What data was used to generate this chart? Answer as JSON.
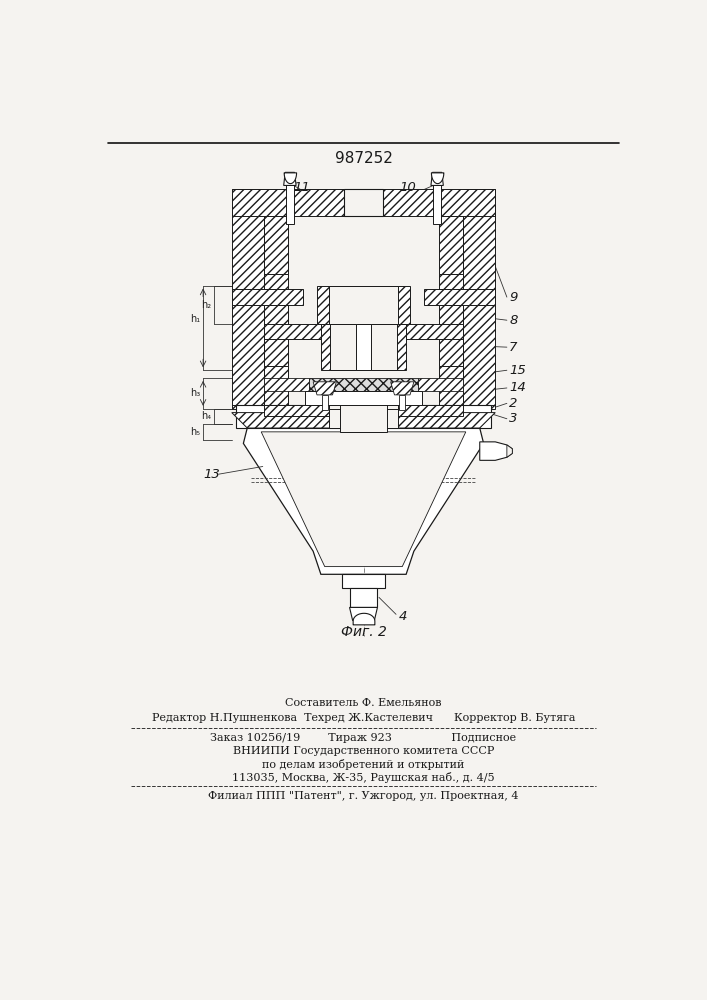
{
  "patent_number": "987252",
  "figure_label": "Фиг. 2",
  "bg": "#f5f3f0",
  "lc": "#1a1a1a",
  "footer_lines": [
    "Составитель Ф. Емельянов",
    "Редактор Н.Пушненкова  Техред Ж.Кастелевич      Корректор В. Бутяга",
    "Заказ 10256/19        Тираж 923                 Подписное",
    "ВНИИПИ Государственного комитета СССР",
    "по делам изобретений и открытий",
    "113035, Москва, Ж-35, Раушская наб., д. 4/5",
    "Филиал ППП \"Патент\", г. Ужгород, ул. Проектная, 4"
  ]
}
